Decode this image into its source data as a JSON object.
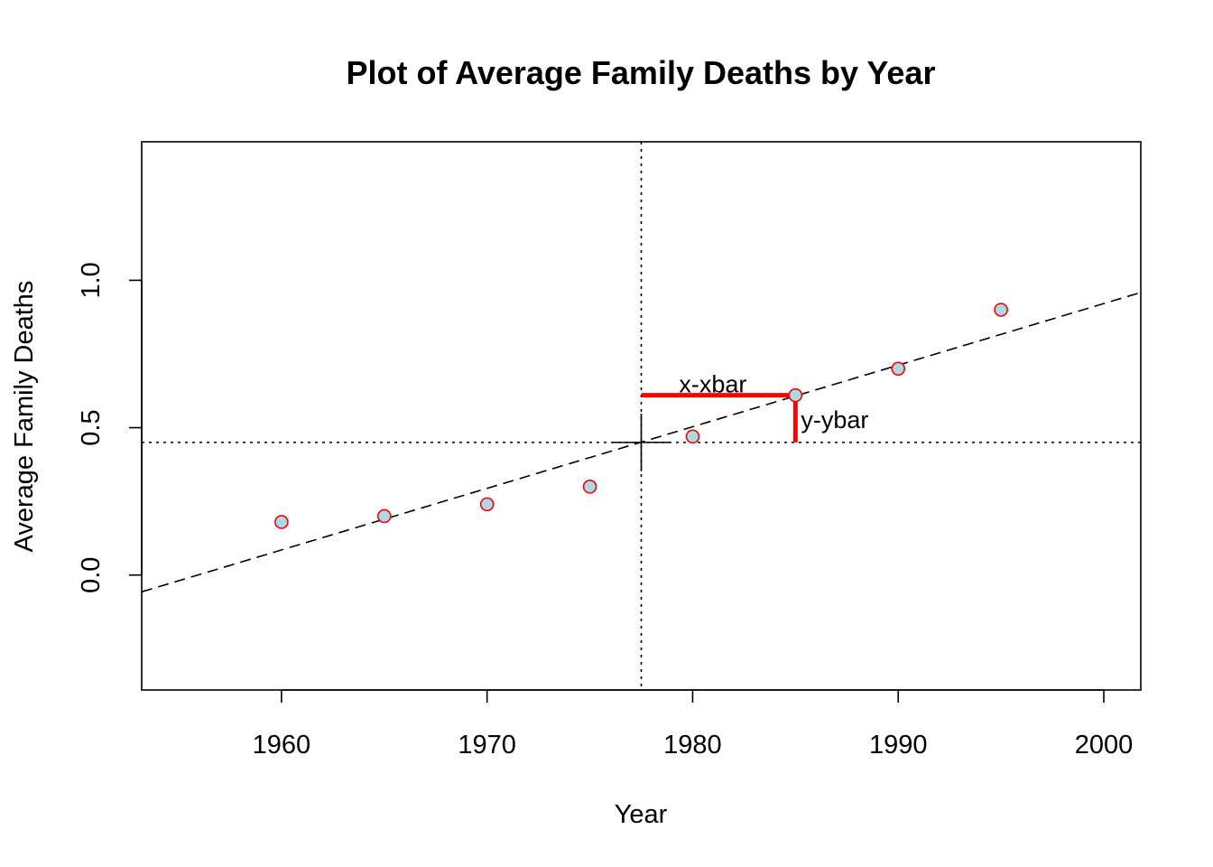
{
  "chart_data": {
    "type": "scatter",
    "title": "Plot of Average Family Deaths by Year",
    "xlabel": "Year",
    "ylabel": "Average Family Deaths",
    "xlim": [
      1953.2,
      2001.8
    ],
    "ylim": [
      -0.39,
      1.47
    ],
    "x_ticks": [
      1960,
      1970,
      1980,
      1990,
      2000
    ],
    "y_ticks": [
      0.0,
      0.5,
      1.0
    ],
    "x_tick_labels": [
      "1960",
      "1970",
      "1980",
      "1990",
      "2000"
    ],
    "y_tick_labels": [
      "0.0",
      "0.5",
      "1.0"
    ],
    "grid": false,
    "points": {
      "x": [
        1960,
        1965,
        1970,
        1975,
        1980,
        1985,
        1990,
        1995
      ],
      "y": [
        0.18,
        0.2,
        0.24,
        0.3,
        0.47,
        0.61,
        0.7,
        0.9
      ],
      "fill_color": "#add8e6",
      "edge_color": "#ff0000"
    },
    "mean_x": 1977.5,
    "mean_y": 0.45,
    "regression_line": {
      "intercept_at_1953.2": -0.057,
      "slope": 0.0209,
      "style": "dashed"
    },
    "highlight_point": {
      "x": 1985,
      "y": 0.61
    },
    "annotations": {
      "x_minus_xbar": "x-xbar",
      "y_minus_ybar": "y-ybar"
    },
    "highlight_color": "#ff0000"
  }
}
